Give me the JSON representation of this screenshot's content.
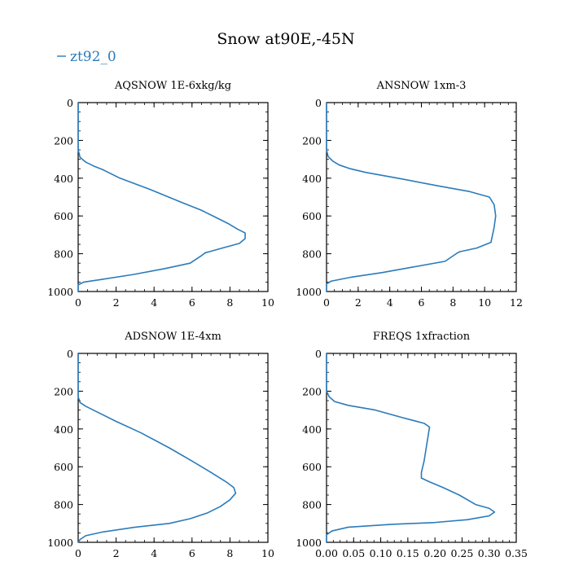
{
  "title": "Snow at90E,-45N",
  "legend": {
    "label": "zt92_0",
    "color": "#2b7bba",
    "placement": "top-left"
  },
  "series_color": "#2b7bba",
  "chart_data": [
    {
      "type": "line",
      "title": "AQSNOW  1E-6xkg/kg",
      "xlim": [
        0,
        10
      ],
      "ylim": [
        1000,
        0
      ],
      "xticks": [
        0,
        2,
        4,
        6,
        8,
        10
      ],
      "xtick_labels": [
        "0",
        "2",
        "4",
        "6",
        "8",
        "10"
      ],
      "yticks": [
        0,
        200,
        400,
        600,
        800,
        1000
      ],
      "ytick_labels": [
        "0",
        "200",
        "400",
        "600",
        "800",
        "1000"
      ],
      "series": [
        {
          "x": [
            0,
            0,
            0,
            0.1,
            0.4,
            0.8,
            1.3,
            2.2,
            3.8,
            5.5,
            6.5,
            7.3,
            7.9,
            8.4,
            8.8,
            8.8,
            8.5,
            7.6,
            6.7,
            6.5,
            5.9,
            4.5,
            2.9,
            1.3,
            0.3,
            0,
            0
          ],
          "y": [
            0,
            150,
            250,
            290,
            315,
            335,
            355,
            400,
            460,
            530,
            570,
            610,
            640,
            670,
            690,
            720,
            745,
            770,
            795,
            810,
            850,
            880,
            910,
            935,
            950,
            965,
            1000
          ]
        }
      ]
    },
    {
      "type": "line",
      "title": "ANSNOW  1xm-3",
      "xlim": [
        0,
        12
      ],
      "ylim": [
        1000,
        0
      ],
      "xticks": [
        0,
        2,
        4,
        6,
        8,
        10,
        12
      ],
      "xtick_labels": [
        "0",
        "2",
        "4",
        "6",
        "8",
        "10",
        "12"
      ],
      "yticks": [
        0,
        200,
        400,
        600,
        800,
        1000
      ],
      "ytick_labels": [
        "0",
        "200",
        "400",
        "600",
        "800",
        "1000"
      ],
      "series": [
        {
          "x": [
            0,
            0,
            0.1,
            0.4,
            0.8,
            1.5,
            2.5,
            4.5,
            7.0,
            9.0,
            10.3,
            10.6,
            10.7,
            10.6,
            10.4,
            9.5,
            8.4,
            8.2,
            7.5,
            5.5,
            3.5,
            1.5,
            0.3,
            0,
            0
          ],
          "y": [
            0,
            250,
            285,
            310,
            330,
            350,
            370,
            400,
            440,
            470,
            500,
            540,
            600,
            660,
            740,
            770,
            790,
            800,
            840,
            870,
            900,
            925,
            945,
            960,
            1000
          ]
        }
      ]
    },
    {
      "type": "line",
      "title": "ADSNOW  1E-4xm",
      "xlim": [
        0,
        10
      ],
      "ylim": [
        1000,
        0
      ],
      "xticks": [
        0,
        2,
        4,
        6,
        8,
        10
      ],
      "xtick_labels": [
        "0",
        "2",
        "4",
        "6",
        "8",
        "10"
      ],
      "yticks": [
        0,
        200,
        400,
        600,
        800,
        1000
      ],
      "ytick_labels": [
        "0",
        "200",
        "400",
        "600",
        "800",
        "1000"
      ],
      "series": [
        {
          "x": [
            0,
            0,
            0.1,
            0.4,
            1.0,
            2.0,
            3.3,
            4.8,
            6.0,
            7.0,
            7.8,
            8.2,
            8.3,
            8.0,
            7.5,
            6.8,
            5.9,
            4.8,
            3.0,
            1.3,
            0.4,
            0.1,
            0
          ],
          "y": [
            0,
            230,
            260,
            280,
            310,
            360,
            420,
            500,
            570,
            630,
            680,
            710,
            740,
            775,
            810,
            845,
            875,
            900,
            920,
            945,
            965,
            985,
            1000
          ]
        }
      ]
    },
    {
      "type": "line",
      "title": "FREQS  1xfraction",
      "xlim": [
        0,
        0.35
      ],
      "ylim": [
        1000,
        0
      ],
      "xticks": [
        0,
        0.05,
        0.1,
        0.15,
        0.2,
        0.25,
        0.3,
        0.35
      ],
      "xtick_labels": [
        "0.00",
        "0.05",
        "0.10",
        "0.15",
        "0.20",
        "0.25",
        "0.30",
        "0.35"
      ],
      "yticks": [
        0,
        200,
        400,
        600,
        800,
        1000
      ],
      "ytick_labels": [
        "0",
        "200",
        "400",
        "600",
        "800",
        "1000"
      ],
      "series": [
        {
          "x": [
            0,
            0,
            0.005,
            0.015,
            0.04,
            0.09,
            0.14,
            0.18,
            0.19,
            0.185,
            0.18,
            0.175,
            0.175,
            0.19,
            0.215,
            0.245,
            0.275,
            0.3,
            0.31,
            0.3,
            0.26,
            0.2,
            0.12,
            0.04,
            0.01,
            0,
            0
          ],
          "y": [
            0,
            200,
            230,
            255,
            275,
            300,
            340,
            370,
            390,
            480,
            570,
            630,
            660,
            680,
            710,
            750,
            800,
            820,
            840,
            860,
            880,
            895,
            905,
            920,
            940,
            960,
            1000
          ]
        }
      ]
    }
  ]
}
